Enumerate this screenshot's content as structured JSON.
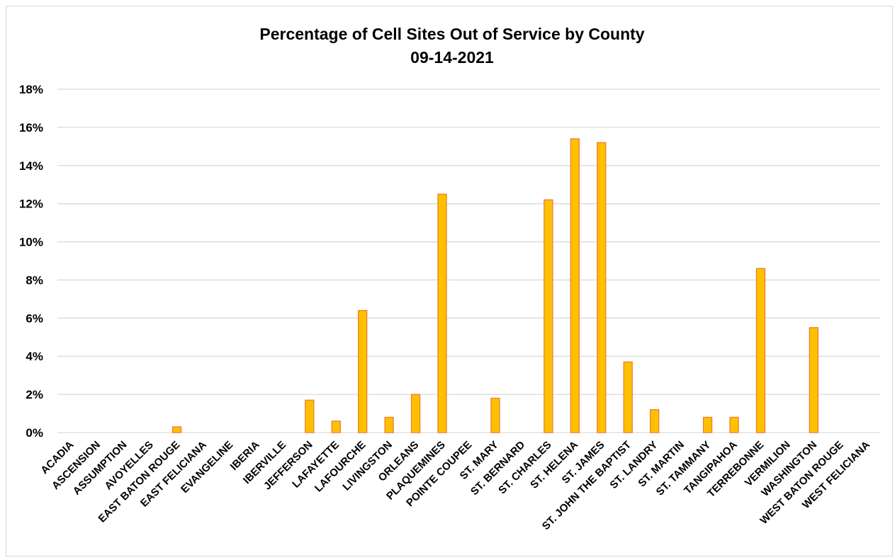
{
  "chart_data": {
    "type": "bar",
    "title": "Percentage of Cell Sites Out of Service by County",
    "subtitle": "09-14-2021",
    "xlabel": "",
    "ylabel": "",
    "ylim": [
      0,
      18
    ],
    "y_ticks": [
      "0%",
      "2%",
      "4%",
      "6%",
      "8%",
      "10%",
      "12%",
      "14%",
      "16%",
      "18%"
    ],
    "grid": true,
    "legend": "none",
    "bar_color": "#FFC000",
    "bar_edge_color": "#ED7D31",
    "categories": [
      "ACADIA",
      "ASCENSION",
      "ASSUMPTION",
      "AVOYELLES",
      "EAST BATON ROUGE",
      "EAST FELICIANA",
      "EVANGELINE",
      "IBERIA",
      "IBERVILLE",
      "JEFFERSON",
      "LAFAYETTE",
      "LAFOURCHE",
      "LIVINGSTON",
      "ORLEANS",
      "PLAQUEMINES",
      "POINTE COUPEE",
      "ST. MARY",
      "ST. BERNARD",
      "ST. CHARLES",
      "ST. HELENA",
      "ST. JAMES",
      "ST. JOHN THE BAPTIST",
      "ST. LANDRY",
      "ST. MARTIN",
      "ST. TAMMANY",
      "TANGIPAHOA",
      "TERREBONNE",
      "VERMILION",
      "WASHINGTON",
      "WEST BATON ROUGE",
      "WEST FELICIANA"
    ],
    "values": [
      0,
      0,
      0,
      0,
      0.3,
      0,
      0,
      0,
      0,
      1.7,
      0.6,
      6.4,
      0.8,
      2.0,
      12.5,
      0,
      1.8,
      0,
      12.2,
      15.4,
      15.2,
      3.7,
      1.2,
      0,
      0.8,
      0.8,
      8.6,
      0,
      5.5,
      0,
      0
    ]
  }
}
